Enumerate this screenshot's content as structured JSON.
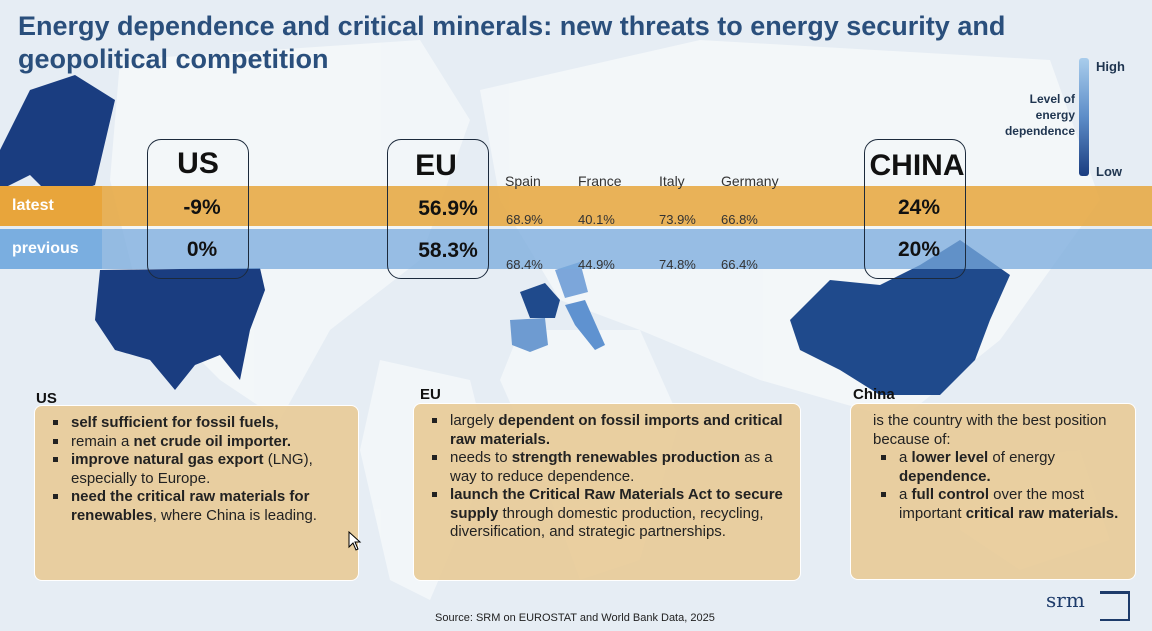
{
  "title": "Energy dependence and critical minerals: new threats to energy security and geopolitical competition",
  "legend": {
    "high": "High",
    "low": "Low",
    "label": "Level of energy dependence",
    "colors": {
      "high": "#a9cdec",
      "low": "#1a3d80"
    }
  },
  "rows": {
    "latest": "latest",
    "previous": "previous"
  },
  "us": {
    "name": "US",
    "latest": "-9%",
    "previous": "0%"
  },
  "eu": {
    "name": "EU",
    "latest": "56.9%",
    "previous": "58.3%",
    "countries": [
      {
        "name": "Spain",
        "latest": "68.9%",
        "previous": "68.4%"
      },
      {
        "name": "France",
        "latest": "40.1%",
        "previous": "44.9%"
      },
      {
        "name": "Italy",
        "latest": "73.9%",
        "previous": "74.8%"
      },
      {
        "name": "Germany",
        "latest": "66.8%",
        "previous": "66.4%"
      }
    ]
  },
  "china": {
    "name": "CHINA",
    "latest": "24%",
    "previous": "20%"
  },
  "cards": {
    "us": {
      "heading": "US",
      "bullets": [
        [
          {
            "t": "self sufficient for fossil fuels,",
            "b": true
          }
        ],
        [
          {
            "t": "remain a ",
            "b": false
          },
          {
            "t": "net crude oil importer.",
            "b": true
          }
        ],
        [
          {
            "t": "improve natural gas export",
            "b": true
          },
          {
            "t": " (LNG), especially to Europe.",
            "b": false
          }
        ],
        [
          {
            "t": "need the critical raw materials for renewables",
            "b": true
          },
          {
            "t": ", where China is leading.",
            "b": false
          }
        ]
      ]
    },
    "eu": {
      "heading": "EU",
      "bullets": [
        [
          {
            "t": "largely ",
            "b": false
          },
          {
            "t": "dependent on fossil imports and critical raw materials.",
            "b": true
          }
        ],
        [
          {
            "t": "needs to ",
            "b": false
          },
          {
            "t": "strength renewables production",
            "b": true
          },
          {
            "t": " as a way to reduce dependence.",
            "b": false
          }
        ],
        [
          {
            "t": "launch the Critical Raw Materials Act to secure supply",
            "b": true
          },
          {
            "t": " through domestic production, recycling, diversification, and strategic partnerships.",
            "b": false
          }
        ]
      ]
    },
    "china": {
      "heading": "China",
      "intro": "is the country with the best position because of:",
      "bullets": [
        [
          {
            "t": "a ",
            "b": false
          },
          {
            "t": "lower level",
            "b": true
          },
          {
            "t": " of energy ",
            "b": false
          },
          {
            "t": "dependence.",
            "b": true
          }
        ],
        [
          {
            "t": "a ",
            "b": false
          },
          {
            "t": "full control",
            "b": true
          },
          {
            "t": " over the most important ",
            "b": false
          },
          {
            "t": "critical raw materials.",
            "b": true
          }
        ]
      ]
    }
  },
  "source": "Source: SRM on EUROSTAT and World Bank Data, 2025",
  "logo": "srm"
}
